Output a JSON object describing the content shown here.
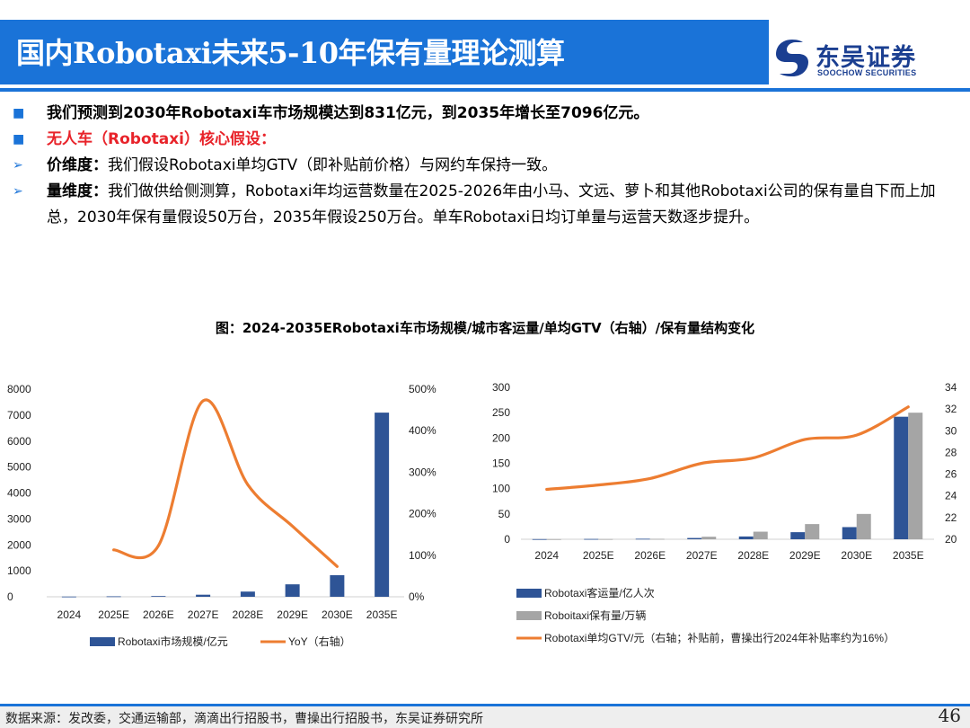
{
  "header": {
    "title": "国内Robotaxi未来5-10年保有量理论测算",
    "logo_cn": "东吴证券",
    "logo_en": "SOOCHOW SECURITIES",
    "brand_color": "#1a73d8"
  },
  "bullets": {
    "b1": "我们预测到2030年Robotaxi车市场规模达到831亿元，到2035年增长至7096亿元。",
    "b2": "无人车（Robotaxi）核心假设：",
    "b3_label": "价维度：",
    "b3_text": "我们假设Robotaxi单均GTV（即补贴前价格）与网约车保持一致。",
    "b4_label": "量维度：",
    "b4_text": "我们做供给侧测算，Robotaxi年均运营数量在2025-2026年由小马、文远、萝卜和其他Robotaxi公司的保有量自下而上加总，2030年保有量假设50万台，2035年假设250万台。单车Robotaxi日均订单量与运营天数逐步提升。",
    "square_mark": "■",
    "arrow_mark": "➢"
  },
  "figure_title": "图：2024-2035ERobotaxi车市场规模/城市客运量/单均GTV（右轴）/保有量结构变化",
  "chart_data": [
    {
      "type": "bar",
      "categories": [
        "2024",
        "2025E",
        "2026E",
        "2027E",
        "2028E",
        "2029E",
        "2030E",
        "2035E"
      ],
      "series": [
        {
          "name": "Robotaxi市场规模/亿元",
          "type": "bar",
          "axis": "left",
          "color": "#2e5496",
          "values": [
            8,
            18,
            28,
            80,
            200,
            480,
            831,
            7096
          ]
        },
        {
          "name": "YoY（右轴）",
          "type": "line",
          "axis": "right",
          "color": "#ed7d31",
          "values": [
            null,
            113,
            123,
            472,
            270,
            170,
            73,
            null
          ]
        }
      ],
      "yleft": {
        "min": 0,
        "max": 8000,
        "ticks": [
          "0",
          "1000",
          "2000",
          "3000",
          "4000",
          "5000",
          "6000",
          "7000",
          "8000"
        ]
      },
      "yright": {
        "min": 0,
        "max": 500,
        "ticks": [
          "0%",
          "100%",
          "200%",
          "300%",
          "400%",
          "500%"
        ]
      },
      "legend": "bottom"
    },
    {
      "type": "bar",
      "categories": [
        "2024",
        "2025E",
        "2026E",
        "2027E",
        "2028E",
        "2029E",
        "2030E",
        "2035E"
      ],
      "series": [
        {
          "name": "Robotaxi客运量/亿人次",
          "type": "bar",
          "axis": "left",
          "color": "#2e5496",
          "values": [
            0.3,
            0.6,
            1,
            2.5,
            5.5,
            14,
            24,
            242
          ]
        },
        {
          "name": "Roboitaxi保有量/万辆",
          "type": "bar",
          "axis": "left",
          "color": "#a5a5a5",
          "values": [
            0.2,
            0.4,
            0.8,
            5,
            15,
            30,
            50,
            250
          ]
        },
        {
          "name": "Robotaxi单均GTV/元（右轴；补贴前，曹操出行2024年补贴率约为16%）",
          "type": "line",
          "axis": "right",
          "color": "#ed7d31",
          "values": [
            24.6,
            25.0,
            25.6,
            27.0,
            27.5,
            29.2,
            29.6,
            32.2
          ]
        }
      ],
      "yleft": {
        "min": 0,
        "max": 300,
        "ticks": [
          "0",
          "50",
          "100",
          "150",
          "200",
          "250",
          "300"
        ]
      },
      "yright": {
        "min": 20,
        "max": 34,
        "ticks": [
          "20",
          "22",
          "24",
          "26",
          "28",
          "30",
          "32",
          "34"
        ]
      },
      "legend": "bottom"
    }
  ],
  "footer": {
    "source": "数据来源：发改委，交通运输部，滴滴出行招股书，曹操出行招股书，东吴证券研究所",
    "page": "46"
  }
}
